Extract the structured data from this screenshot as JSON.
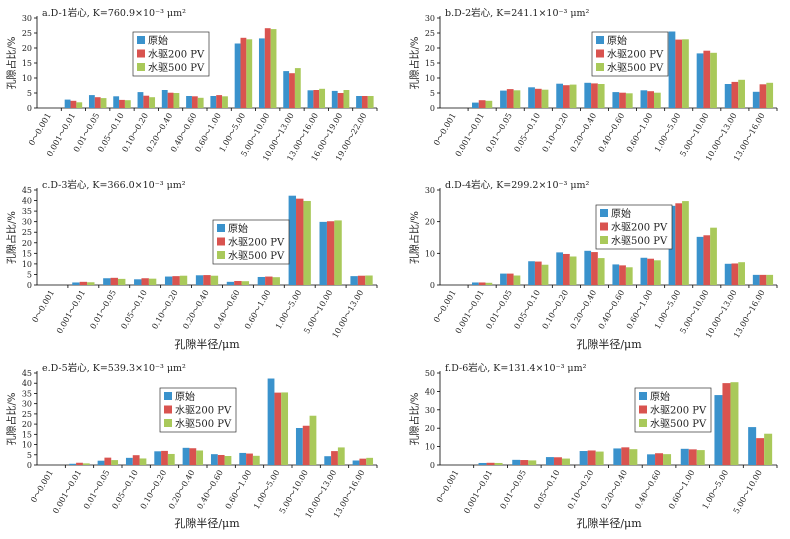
{
  "colors": {
    "原始": "#3a92cc",
    "水驱200 PV": "#d9534f",
    "水驱500 PV": "#a9c95a"
  },
  "chart_data": [
    {
      "type": "bar",
      "title": "a.D-1岩心, K=760.9×10⁻³ μm²",
      "xlabel": "",
      "ylabel": "孔隙占比/%",
      "ylim": [
        0,
        30
      ],
      "yticks": [
        0,
        5,
        10,
        15,
        20,
        25,
        30
      ],
      "categories": [
        "0～0.001",
        "0.001～0.01",
        "0.01～0.05",
        "0.05～0.10",
        "0.10～0.20",
        "0.20～0.40",
        "0.40～0.60",
        "0.60～1.00",
        "1.00～5.00",
        "5.00～10.00",
        "10.00～13.00",
        "13.00～16.00",
        "16.00～19.00",
        "19.00～22.00"
      ],
      "series": [
        {
          "name": "原始",
          "values": [
            0,
            2.8,
            4.3,
            3.9,
            5.3,
            6.0,
            4.0,
            4.0,
            21.5,
            23.2,
            12.3,
            5.9,
            5.7,
            4.0
          ]
        },
        {
          "name": "水驱200 PV",
          "values": [
            0,
            2.4,
            3.6,
            2.7,
            4.1,
            5.1,
            3.9,
            4.3,
            23.4,
            26.6,
            11.6,
            6.0,
            5.0,
            4.0
          ]
        },
        {
          "name": "水驱500 PV",
          "values": [
            0,
            1.9,
            3.3,
            2.6,
            3.6,
            5.0,
            3.4,
            3.9,
            22.9,
            26.3,
            13.3,
            6.4,
            6.0,
            4.0
          ]
        }
      ],
      "legend_position": "upper-center"
    },
    {
      "type": "bar",
      "title": "b.D-2岩心, K=241.1×10⁻³ μm²",
      "xlabel": "",
      "ylabel": "孔隙占比/%",
      "ylim": [
        0,
        30
      ],
      "yticks": [
        0,
        5,
        10,
        15,
        20,
        25,
        30
      ],
      "categories": [
        "0～0.001",
        "0.001～0.01",
        "0.01～0.05",
        "0.05～0.10",
        "0.10～0.20",
        "0.20～0.40",
        "0.40～0.60",
        "0.60～1.00",
        "1.00～5.00",
        "5.00～10.00",
        "10.00～13.00",
        "13.00～16.00"
      ],
      "series": [
        {
          "name": "原始",
          "values": [
            0,
            1.8,
            5.8,
            6.9,
            8.1,
            8.4,
            5.3,
            5.9,
            25.5,
            18.2,
            8.0,
            5.4
          ]
        },
        {
          "name": "水驱200 PV",
          "values": [
            0,
            2.6,
            6.3,
            6.4,
            7.6,
            8.2,
            5.1,
            5.6,
            22.8,
            19.1,
            8.7,
            7.9
          ]
        },
        {
          "name": "水驱500 PV",
          "values": [
            0,
            2.4,
            5.9,
            6.1,
            7.8,
            8.0,
            4.9,
            5.1,
            22.9,
            18.4,
            9.4,
            8.4
          ]
        }
      ],
      "legend_position": "upper-center"
    },
    {
      "type": "bar",
      "title": "c.D-3岩心, K=366.0×10⁻³ μm²",
      "xlabel": "孔隙半径/μm",
      "ylabel": "孔隙占比/%",
      "ylim": [
        0,
        45
      ],
      "yticks": [
        0,
        5,
        10,
        15,
        20,
        25,
        30,
        35,
        40,
        45
      ],
      "categories": [
        "0～0.001",
        "0.001～0.01",
        "0.01～0.05",
        "0.05～0.10",
        "0.10～0.20",
        "0.20～0.40",
        "0.40～0.60",
        "0.60～1.00",
        "1.00～5.00",
        "5.00～10.00",
        "10.00～13.00"
      ],
      "series": [
        {
          "name": "原始",
          "values": [
            0,
            1.2,
            3.2,
            2.7,
            4.0,
            4.6,
            1.5,
            3.8,
            42.3,
            29.9,
            4.2
          ]
        },
        {
          "name": "水驱200 PV",
          "values": [
            0,
            1.5,
            3.4,
            3.2,
            4.2,
            4.7,
            1.9,
            4.0,
            40.9,
            30.2,
            4.4
          ]
        },
        {
          "name": "水驱500 PV",
          "values": [
            0,
            1.3,
            2.9,
            3.0,
            4.4,
            4.4,
            1.8,
            3.7,
            39.8,
            30.6,
            4.5
          ]
        }
      ],
      "legend_position": "center-right"
    },
    {
      "type": "bar",
      "title": "d.D-4岩心, K=299.2×10⁻³ μm²",
      "xlabel": "孔隙半径/μm",
      "ylabel": "孔隙占比/%",
      "ylim": [
        0,
        30
      ],
      "yticks": [
        0,
        10,
        20,
        30
      ],
      "categories": [
        "0～0.001",
        "0.001～0.01",
        "0.01～0.05",
        "0.05～0.10",
        "0.10～0.20",
        "0.20～0.40",
        "0.40～0.60",
        "0.60～1.00",
        "1.00～5.00",
        "5.00～10.00",
        "10.00～13.00",
        "13.00～16.00"
      ],
      "series": [
        {
          "name": "原始",
          "values": [
            0,
            0.8,
            3.6,
            7.5,
            10.3,
            10.8,
            6.5,
            8.6,
            25.0,
            15.2,
            6.7,
            3.2
          ]
        },
        {
          "name": "水驱200 PV",
          "values": [
            0,
            0.8,
            3.6,
            7.4,
            9.8,
            10.4,
            6.2,
            8.3,
            25.8,
            15.7,
            6.8,
            3.2
          ]
        },
        {
          "name": "水驱500 PV",
          "values": [
            0,
            0.7,
            3.0,
            6.4,
            9.0,
            8.5,
            5.6,
            7.8,
            26.5,
            18.1,
            7.2,
            3.2
          ]
        }
      ],
      "legend_position": "upper-center"
    },
    {
      "type": "bar",
      "title": "e.D-5岩心, K=539.3×10⁻³ μm²",
      "xlabel": "孔隙半径/μm",
      "ylabel": "孔隙占比/%",
      "ylim": [
        0,
        45
      ],
      "yticks": [
        0,
        5,
        10,
        15,
        20,
        25,
        30,
        35,
        40,
        45
      ],
      "categories": [
        "0～0.001",
        "0.001～0.01",
        "0.01～0.05",
        "0.05～0.10",
        "0.10～0.20",
        "0.20～0.40",
        "0.40～0.60",
        "0.60～1.00",
        "1.00～5.00",
        "5.00～10.00",
        "10.00～13.00",
        "13.00～16.00"
      ],
      "series": [
        {
          "name": "原始",
          "values": [
            0,
            0.6,
            2.1,
            3.5,
            6.7,
            8.4,
            5.3,
            5.9,
            42.3,
            18.1,
            4.3,
            2.2
          ]
        },
        {
          "name": "水驱200 PV",
          "values": [
            0,
            1.1,
            3.6,
            4.8,
            6.9,
            8.2,
            4.9,
            5.6,
            35.4,
            19.2,
            6.8,
            3.1
          ]
        },
        {
          "name": "水驱500 PV",
          "values": [
            0,
            0.8,
            2.4,
            3.2,
            5.4,
            7.1,
            4.4,
            4.5,
            35.5,
            24.1,
            8.6,
            3.5
          ]
        }
      ],
      "legend_position": "upper-center"
    },
    {
      "type": "bar",
      "title": "f.D-6岩心, K=131.4×10⁻³ μm²",
      "xlabel": "孔隙半径/μm",
      "ylabel": "孔隙占比/%",
      "ylim": [
        0,
        50
      ],
      "yticks": [
        0,
        10,
        20,
        30,
        40,
        50
      ],
      "categories": [
        "0～0.001",
        "0.001～0.01",
        "0.01～0.05",
        "0.05～0.10",
        "0.10～0.20",
        "0.20～0.40",
        "0.40～0.60",
        "0.60～1.00",
        "1.00～5.00",
        "5.00～10.00"
      ],
      "series": [
        {
          "name": "原始",
          "values": [
            0,
            1.1,
            2.8,
            4.3,
            7.6,
            9.0,
            5.8,
            8.8,
            38.0,
            20.6
          ]
        },
        {
          "name": "水驱200 PV",
          "values": [
            0,
            1.2,
            2.7,
            4.2,
            7.9,
            9.6,
            6.4,
            8.5,
            44.5,
            14.6
          ]
        },
        {
          "name": "水驱500 PV",
          "values": [
            0,
            1.1,
            2.5,
            3.5,
            7.3,
            8.6,
            5.9,
            8.1,
            45.0,
            17.0
          ]
        }
      ],
      "legend_position": "upper-center"
    }
  ]
}
